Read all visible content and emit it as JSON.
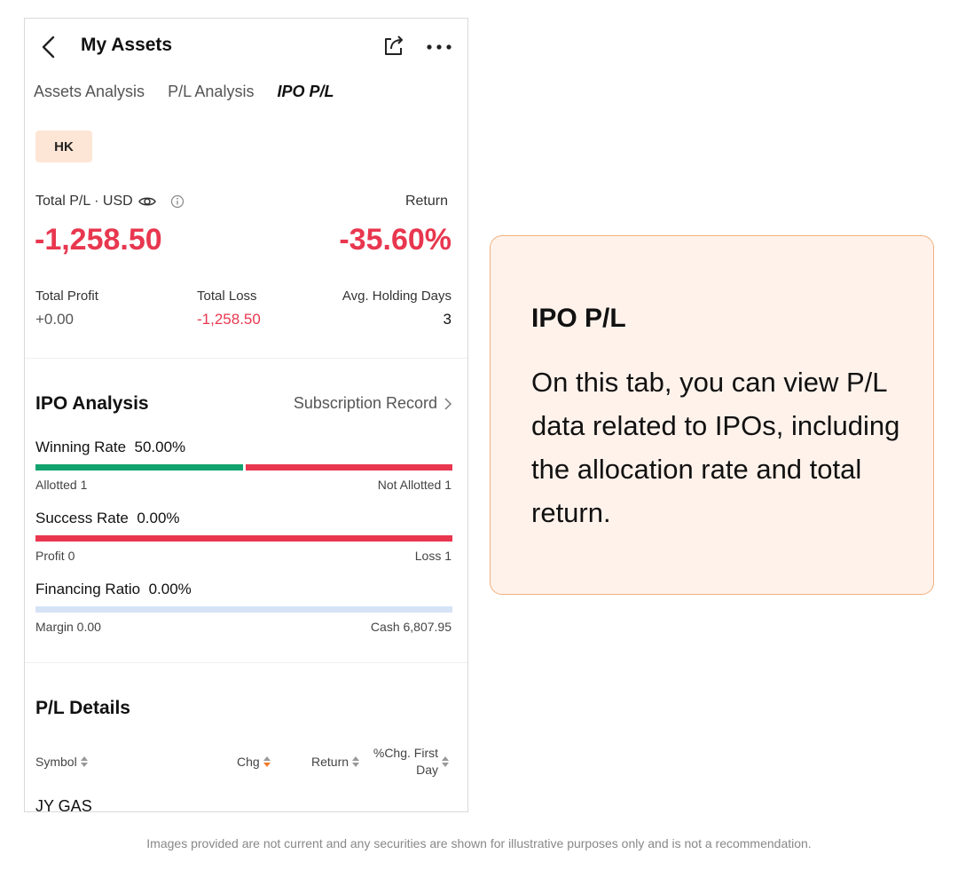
{
  "header": {
    "title": "My Assets"
  },
  "tabs": [
    {
      "label": "Assets Analysis",
      "active": false
    },
    {
      "label": "P/L Analysis",
      "active": false
    },
    {
      "label": "IPO P/L",
      "active": true
    }
  ],
  "market": {
    "label": "HK"
  },
  "summary": {
    "total_pl_label": "Total P/L · USD",
    "return_label": "Return",
    "total_pl_value": "-1,258.50",
    "return_value": "-35.60%",
    "total_profit_label": "Total Profit",
    "total_profit_value": "+0.00",
    "total_loss_label": "Total Loss",
    "total_loss_value": "-1,258.50",
    "avg_days_label": "Avg. Holding Days",
    "avg_days_value": "3"
  },
  "ipo_analysis": {
    "title": "IPO Analysis",
    "subscription_link": "Subscription Record",
    "winning_rate_label": "Winning Rate",
    "winning_rate_value": "50.00%",
    "winning_rate": 0.5,
    "allotted_text": "Allotted 1",
    "not_allotted_text": "Not Allotted 1",
    "success_rate_label": "Success Rate",
    "success_rate_value": "0.00%",
    "success_rate": 0.0,
    "profit_text": "Profit 0",
    "loss_text": "Loss 1",
    "financing_ratio_label": "Financing Ratio",
    "financing_ratio_value": "0.00%",
    "financing_ratio": 0.0,
    "margin_text": "Margin 0.00",
    "cash_text": "Cash 6,807.95"
  },
  "pl_details": {
    "title": "P/L Details",
    "columns": [
      "Symbol",
      "Chg",
      "Return",
      "%Chg. First Day"
    ],
    "rows": [
      {
        "symbol": "JY GAS"
      }
    ]
  },
  "callout": {
    "title": "IPO P/L",
    "body": "On this tab, you can view P/L data related to IPOs, including the allocation rate and total return."
  },
  "disclaimer": "Images provided are not current and any securities are shown for illustrative purposes only and is not a recommendation.",
  "colors": {
    "loss": "#e8374f",
    "gain": "#13a36e",
    "accent": "#f07a2a",
    "chip_bg": "#fde6d6",
    "callout_bg": "#fff2eb",
    "callout_border": "#f2b17f",
    "financing_bar": "#d6e3f7"
  }
}
